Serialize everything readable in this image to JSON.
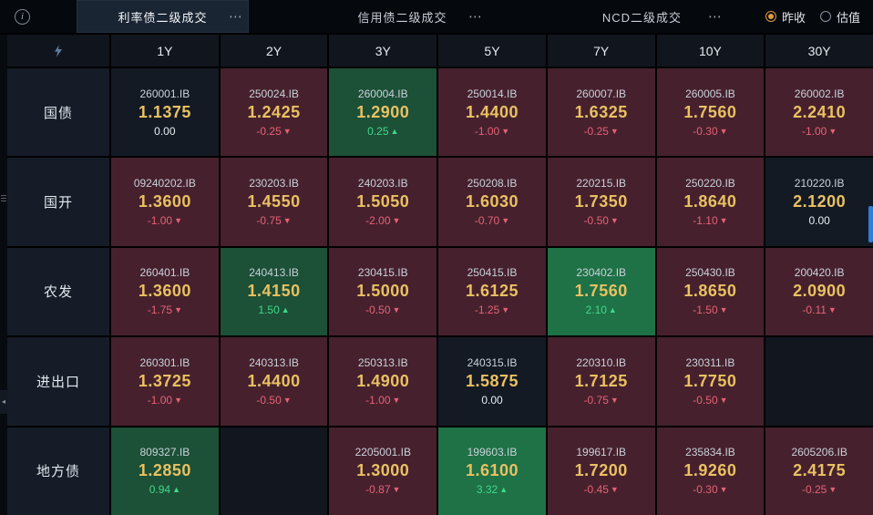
{
  "topbar": {
    "info_icon": "i",
    "menu_dots": "⋯",
    "tabs": [
      {
        "key": "rate-bond",
        "label": "利率债二级成交",
        "active": true
      },
      {
        "key": "credit-bond",
        "label": "信用债二级成交",
        "active": false
      },
      {
        "key": "ncd",
        "label": "NCD二级成交",
        "active": false
      }
    ],
    "radios": [
      {
        "key": "prev-close",
        "label": "昨收",
        "selected": true
      },
      {
        "key": "valuation",
        "label": "估值",
        "selected": false
      }
    ]
  },
  "icons": {
    "up_arrow": "▲",
    "down_arrow": "▼",
    "collapse_arrow": "◂",
    "corner": "flash-icon"
  },
  "table": {
    "columns": [
      "1Y",
      "2Y",
      "3Y",
      "5Y",
      "7Y",
      "10Y",
      "30Y"
    ],
    "rows": [
      {
        "key": "treasury",
        "label": "国债",
        "cells": [
          {
            "code": "260001.IB",
            "value": "1.1375",
            "change": "0.00",
            "dir": "flat",
            "bg": "flat"
          },
          {
            "code": "250024.IB",
            "value": "1.2425",
            "change": "-0.25",
            "dir": "down",
            "bg": "down"
          },
          {
            "code": "260004.IB",
            "value": "1.2900",
            "change": "0.25",
            "dir": "up",
            "bg": "up"
          },
          {
            "code": "250014.IB",
            "value": "1.4400",
            "change": "-1.00",
            "dir": "down",
            "bg": "down"
          },
          {
            "code": "260007.IB",
            "value": "1.6325",
            "change": "-0.25",
            "dir": "down",
            "bg": "down"
          },
          {
            "code": "260005.IB",
            "value": "1.7560",
            "change": "-0.30",
            "dir": "down",
            "bg": "down"
          },
          {
            "code": "260002.IB",
            "value": "2.2410",
            "change": "-1.00",
            "dir": "down",
            "bg": "down"
          }
        ]
      },
      {
        "key": "cdb",
        "label": "国开",
        "cells": [
          {
            "code": "09240202.IB",
            "value": "1.3600",
            "change": "-1.00",
            "dir": "down",
            "bg": "down"
          },
          {
            "code": "230203.IB",
            "value": "1.4550",
            "change": "-0.75",
            "dir": "down",
            "bg": "down"
          },
          {
            "code": "240203.IB",
            "value": "1.5050",
            "change": "-2.00",
            "dir": "down",
            "bg": "down"
          },
          {
            "code": "250208.IB",
            "value": "1.6030",
            "change": "-0.70",
            "dir": "down",
            "bg": "down"
          },
          {
            "code": "220215.IB",
            "value": "1.7350",
            "change": "-0.50",
            "dir": "down",
            "bg": "down"
          },
          {
            "code": "250220.IB",
            "value": "1.8640",
            "change": "-1.10",
            "dir": "down",
            "bg": "down"
          },
          {
            "code": "210220.IB",
            "value": "2.1200",
            "change": "0.00",
            "dir": "flat",
            "bg": "flat"
          }
        ]
      },
      {
        "key": "adb",
        "label": "农发",
        "cells": [
          {
            "code": "260401.IB",
            "value": "1.3600",
            "change": "-1.75",
            "dir": "down",
            "bg": "down"
          },
          {
            "code": "240413.IB",
            "value": "1.4150",
            "change": "1.50",
            "dir": "up",
            "bg": "up"
          },
          {
            "code": "230415.IB",
            "value": "1.5000",
            "change": "-0.50",
            "dir": "down",
            "bg": "down"
          },
          {
            "code": "250415.IB",
            "value": "1.6125",
            "change": "-1.25",
            "dir": "down",
            "bg": "down"
          },
          {
            "code": "230402.IB",
            "value": "1.7560",
            "change": "2.10",
            "dir": "up",
            "bg": "up-strong"
          },
          {
            "code": "250430.IB",
            "value": "1.8650",
            "change": "-1.50",
            "dir": "down",
            "bg": "down"
          },
          {
            "code": "200420.IB",
            "value": "2.0900",
            "change": "-0.11",
            "dir": "down",
            "bg": "down"
          }
        ]
      },
      {
        "key": "exim",
        "label": "进出口",
        "cells": [
          {
            "code": "260301.IB",
            "value": "1.3725",
            "change": "-1.00",
            "dir": "down",
            "bg": "down"
          },
          {
            "code": "240313.IB",
            "value": "1.4400",
            "change": "-0.50",
            "dir": "down",
            "bg": "down"
          },
          {
            "code": "250313.IB",
            "value": "1.4900",
            "change": "-1.00",
            "dir": "down",
            "bg": "down"
          },
          {
            "code": "240315.IB",
            "value": "1.5875",
            "change": "0.00",
            "dir": "flat",
            "bg": "flat"
          },
          {
            "code": "220310.IB",
            "value": "1.7125",
            "change": "-0.75",
            "dir": "down",
            "bg": "down"
          },
          {
            "code": "230311.IB",
            "value": "1.7750",
            "change": "-0.50",
            "dir": "down",
            "bg": "down"
          },
          null
        ]
      },
      {
        "key": "local",
        "label": "地方债",
        "cells": [
          {
            "code": "809327.IB",
            "value": "1.2850",
            "change": "0.94",
            "dir": "up",
            "bg": "up"
          },
          null,
          {
            "code": "2205001.IB",
            "value": "1.3000",
            "change": "-0.87",
            "dir": "down",
            "bg": "down"
          },
          {
            "code": "199603.IB",
            "value": "1.6100",
            "change": "3.32",
            "dir": "up",
            "bg": "up-strong"
          },
          {
            "code": "199617.IB",
            "value": "1.7200",
            "change": "-0.45",
            "dir": "down",
            "bg": "down"
          },
          {
            "code": "235834.IB",
            "value": "1.9260",
            "change": "-0.30",
            "dir": "down",
            "bg": "down"
          },
          {
            "code": "2605206.IB",
            "value": "2.4175",
            "change": "-0.25",
            "dir": "down",
            "bg": "down"
          }
        ]
      }
    ]
  },
  "colors": {
    "accent_up": "#41d98a",
    "accent_down": "#e66177",
    "value_gold": "#e9c162",
    "bg_up": "#1c5037",
    "bg_up_strong": "#1f7146",
    "bg_down": "#46212d",
    "bg_flat": "#141a24",
    "radio_selected": "#e09a3e",
    "scrollbar": "#2f7fd8"
  }
}
